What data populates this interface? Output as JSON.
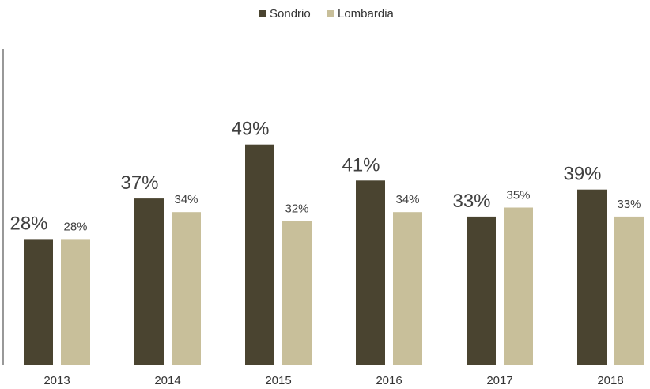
{
  "chart_data": {
    "type": "bar",
    "categories": [
      "2013",
      "2014",
      "2015",
      "2016",
      "2017",
      "2018"
    ],
    "series": [
      {
        "name": "Sondrio",
        "values": [
          28,
          37,
          49,
          41,
          33,
          39
        ],
        "labels": [
          "28%",
          "37%",
          "49%",
          "41%",
          "33%",
          "39%"
        ],
        "color": "#4a4430"
      },
      {
        "name": "Lombardia",
        "values": [
          28,
          34,
          32,
          34,
          35,
          33
        ],
        "labels": [
          "28%",
          "34%",
          "32%",
          "34%",
          "35%",
          "33%"
        ],
        "color": "#c8bf9a"
      }
    ],
    "title": "",
    "xlabel": "",
    "ylabel": "",
    "ylim": [
      0,
      60
    ],
    "grid": false,
    "legend": "top-center",
    "y_axis_line": true
  }
}
